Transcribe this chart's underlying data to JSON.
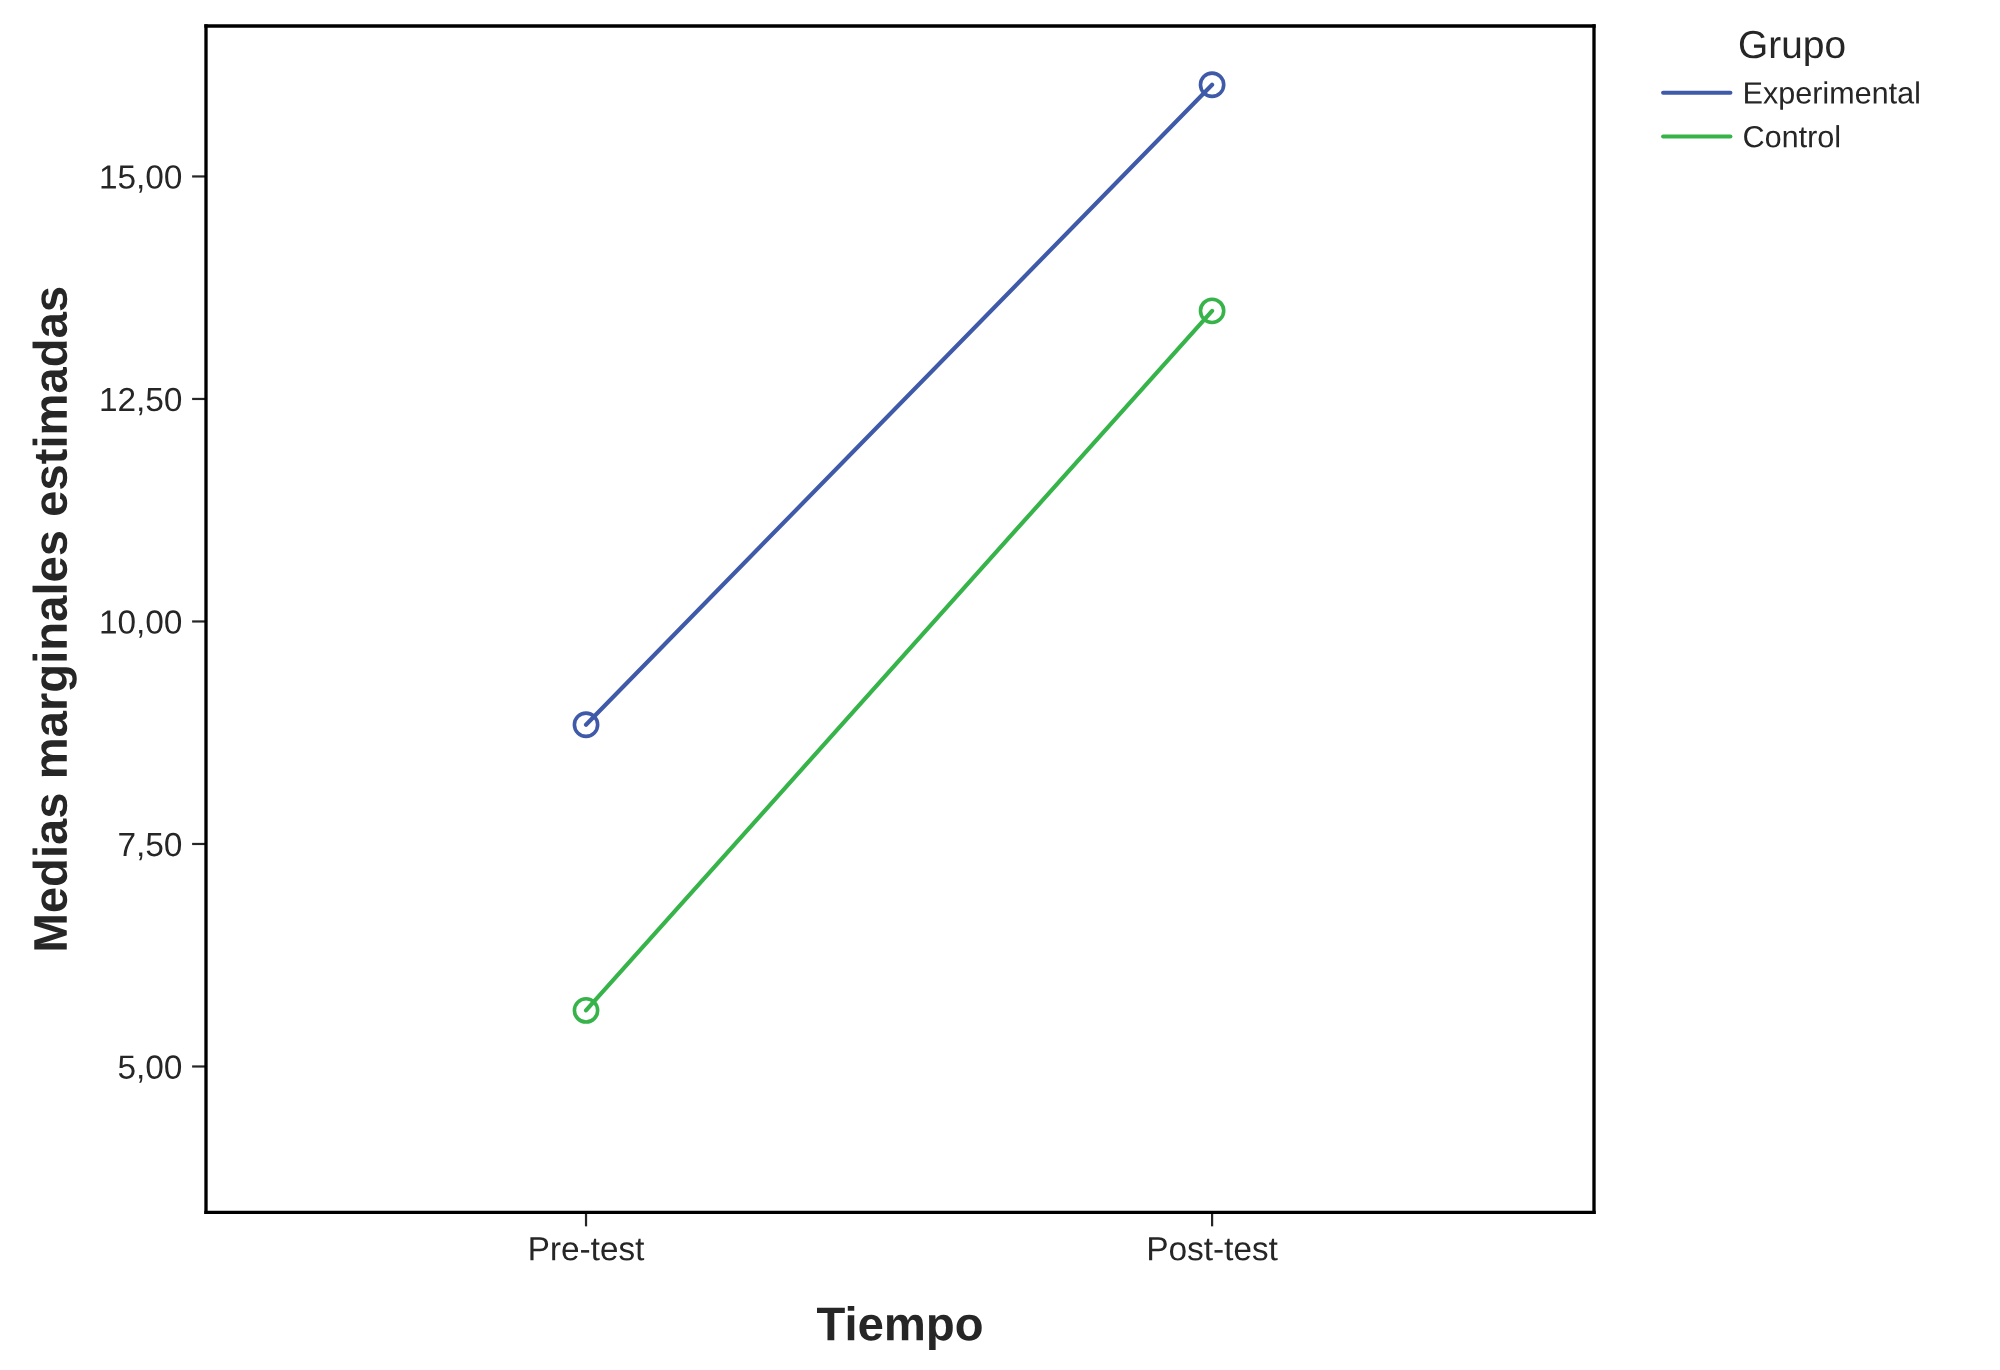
{
  "chart_data": {
    "type": "line",
    "xlabel": "Tiempo",
    "ylabel": "Medias marginales estimadas",
    "legend_title": "Grupo",
    "categories": [
      "Pre-test",
      "Post-test"
    ],
    "series": [
      {
        "name": "Experimental",
        "color": "#3f5aa8",
        "values": [
          8.84,
          16.03
        ]
      },
      {
        "name": "Control",
        "color": "#36b44a",
        "values": [
          5.63,
          13.49
        ]
      }
    ],
    "ylim": [
      3.36,
      16.69
    ],
    "yticks": [
      {
        "value": 5,
        "label": "5,00"
      },
      {
        "value": 7.5,
        "label": "7,50"
      },
      {
        "value": 10,
        "label": "10,00"
      },
      {
        "value": 12.5,
        "label": "12,50"
      },
      {
        "value": 15,
        "label": "15,00"
      }
    ],
    "marker": "circle",
    "line_style": "solid",
    "grid": false,
    "legend": "top right"
  }
}
